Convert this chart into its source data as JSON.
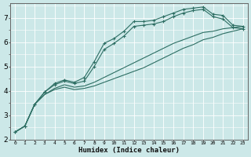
{
  "xlabel": "Humidex (Indice chaleur)",
  "bg_color": "#cce8e8",
  "grid_color": "#ffffff",
  "line_color": "#2d6e63",
  "xlim": [
    -0.5,
    23.5
  ],
  "ylim": [
    2.0,
    7.6
  ],
  "yticks": [
    2,
    3,
    4,
    5,
    6,
    7
  ],
  "xticks": [
    0,
    1,
    2,
    3,
    4,
    5,
    6,
    7,
    8,
    9,
    10,
    11,
    12,
    13,
    14,
    15,
    16,
    17,
    18,
    19,
    20,
    21,
    22,
    23
  ],
  "series": [
    {
      "x": [
        0,
        1,
        2,
        3,
        4,
        5,
        6,
        7,
        8,
        9,
        10,
        11,
        12,
        13,
        14,
        15,
        16,
        17,
        18,
        19,
        20,
        21,
        22,
        23
      ],
      "y": [
        2.3,
        2.55,
        3.45,
        3.95,
        4.3,
        4.45,
        4.35,
        4.55,
        5.2,
        5.95,
        6.15,
        6.45,
        6.85,
        6.85,
        6.9,
        7.05,
        7.2,
        7.35,
        7.4,
        7.45,
        7.15,
        7.1,
        6.7,
        6.65
      ],
      "marker": true
    },
    {
      "x": [
        0,
        1,
        2,
        3,
        4,
        5,
        6,
        7,
        8,
        9,
        10,
        11,
        12,
        13,
        14,
        15,
        16,
        17,
        18,
        19,
        20,
        21,
        22,
        23
      ],
      "y": [
        2.3,
        2.55,
        3.45,
        3.95,
        4.25,
        4.4,
        4.3,
        4.4,
        5.0,
        5.7,
        5.95,
        6.25,
        6.65,
        6.7,
        6.75,
        6.85,
        7.05,
        7.2,
        7.3,
        7.35,
        7.05,
        6.95,
        6.6,
        6.55
      ],
      "marker": true
    },
    {
      "x": [
        0,
        1,
        2,
        3,
        4,
        5,
        6,
        7,
        8,
        9,
        10,
        11,
        12,
        13,
        14,
        15,
        16,
        17,
        18,
        19,
        20,
        21,
        22,
        23
      ],
      "y": [
        2.3,
        2.55,
        3.45,
        3.85,
        4.1,
        4.25,
        4.15,
        4.2,
        4.35,
        4.55,
        4.75,
        4.95,
        5.15,
        5.35,
        5.55,
        5.75,
        5.95,
        6.1,
        6.25,
        6.4,
        6.45,
        6.55,
        6.6,
        6.65
      ],
      "marker": false
    },
    {
      "x": [
        0,
        1,
        2,
        3,
        4,
        5,
        6,
        7,
        8,
        9,
        10,
        11,
        12,
        13,
        14,
        15,
        16,
        17,
        18,
        19,
        20,
        21,
        22,
        23
      ],
      "y": [
        2.3,
        2.55,
        3.45,
        3.85,
        4.05,
        4.15,
        4.05,
        4.1,
        4.2,
        4.35,
        4.5,
        4.65,
        4.8,
        4.95,
        5.15,
        5.35,
        5.55,
        5.75,
        5.9,
        6.1,
        6.2,
        6.35,
        6.45,
        6.55
      ],
      "marker": false
    }
  ]
}
